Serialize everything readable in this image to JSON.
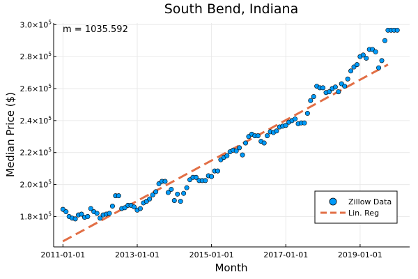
{
  "chart_data": {
    "type": "scatter",
    "title": "South Bend, Indiana",
    "xlabel": "Month",
    "ylabel": "Median Price ($)",
    "annotation": "m = 1035.592",
    "x_ticks": [
      "2011-01-01",
      "2013-01-01",
      "2015-01-01",
      "2017-01-01",
      "2019-01-01"
    ],
    "y_ticks": [
      {
        "value": 180000,
        "mantissa": "1.8×10",
        "exp": "5"
      },
      {
        "value": 200000,
        "mantissa": "2.0×10",
        "exp": "5"
      },
      {
        "value": 220000,
        "mantissa": "2.2×10",
        "exp": "5"
      },
      {
        "value": 240000,
        "mantissa": "2.4×10",
        "exp": "5"
      },
      {
        "value": 260000,
        "mantissa": "2.6×10",
        "exp": "5"
      },
      {
        "value": 280000,
        "mantissa": "2.8×10",
        "exp": "5"
      },
      {
        "value": 300000,
        "mantissa": "3.0×10",
        "exp": "5"
      }
    ],
    "xlim": [
      "2010-10-01",
      "2020-05-01"
    ],
    "ylim": [
      161000,
      301000
    ],
    "grid": true,
    "legend_position": "bottom-right",
    "series": [
      {
        "name": "Zillow Data",
        "type": "scatter",
        "color": "#009af9",
        "x": [
          "2011-01",
          "2011-02",
          "2011-03",
          "2011-04",
          "2011-05",
          "2011-06",
          "2011-07",
          "2011-08",
          "2011-09",
          "2011-10",
          "2011-11",
          "2011-12",
          "2012-01",
          "2012-02",
          "2012-03",
          "2012-04",
          "2012-05",
          "2012-06",
          "2012-07",
          "2012-08",
          "2012-09",
          "2012-10",
          "2012-11",
          "2012-12",
          "2013-01",
          "2013-02",
          "2013-03",
          "2013-04",
          "2013-05",
          "2013-06",
          "2013-07",
          "2013-08",
          "2013-09",
          "2013-10",
          "2013-11",
          "2013-12",
          "2014-01",
          "2014-02",
          "2014-03",
          "2014-04",
          "2014-05",
          "2014-06",
          "2014-07",
          "2014-08",
          "2014-09",
          "2014-10",
          "2014-11",
          "2014-12",
          "2015-01",
          "2015-02",
          "2015-03",
          "2015-04",
          "2015-05",
          "2015-06",
          "2015-07",
          "2015-08",
          "2015-09",
          "2015-10",
          "2015-11",
          "2015-12",
          "2016-01",
          "2016-02",
          "2016-03",
          "2016-04",
          "2016-05",
          "2016-06",
          "2016-07",
          "2016-08",
          "2016-09",
          "2016-10",
          "2016-11",
          "2016-12",
          "2017-01",
          "2017-02",
          "2017-03",
          "2017-04",
          "2017-05",
          "2017-06",
          "2017-07",
          "2017-08",
          "2017-09",
          "2017-10",
          "2017-11",
          "2017-12",
          "2018-01",
          "2018-02",
          "2018-03",
          "2018-04",
          "2018-05",
          "2018-06",
          "2018-07",
          "2018-08",
          "2018-09",
          "2018-10",
          "2018-11",
          "2018-12",
          "2019-01",
          "2019-02",
          "2019-03",
          "2019-04",
          "2019-05",
          "2019-06",
          "2019-07",
          "2019-08",
          "2019-09",
          "2019-10",
          "2019-11",
          "2019-12",
          "2020-01"
        ],
        "y": [
          184500,
          183000,
          180000,
          179000,
          178500,
          181000,
          181500,
          179500,
          180000,
          185000,
          183000,
          182000,
          179000,
          181000,
          181500,
          182000,
          186500,
          193000,
          193000,
          185000,
          185500,
          187000,
          187000,
          186000,
          184000,
          185000,
          188500,
          189500,
          191000,
          193500,
          195500,
          200500,
          202000,
          202000,
          195000,
          197000,
          190000,
          194000,
          189500,
          194500,
          198000,
          203000,
          204500,
          204500,
          202500,
          202500,
          202500,
          205500,
          205000,
          208500,
          208500,
          215500,
          217000,
          218000,
          220500,
          221500,
          221000,
          223000,
          218500,
          226000,
          230000,
          231500,
          230500,
          230500,
          227000,
          226000,
          230500,
          233000,
          232500,
          233500,
          236000,
          236500,
          237000,
          239000,
          240000,
          241000,
          238000,
          238500,
          238500,
          244500,
          252500,
          255000,
          261500,
          260500,
          260500,
          257500,
          258000,
          260000,
          261000,
          258000,
          263000,
          261500,
          266000,
          271000,
          273500,
          275000,
          280000,
          281000,
          279000,
          284500,
          284500,
          283000,
          273000,
          277500,
          290000,
          296500,
          296500,
          296500,
          296500
        ]
      },
      {
        "name": "Lin. Reg",
        "type": "line",
        "style": "dashed",
        "color": "#e26f46",
        "x": [
          "2011-01",
          "2019-10"
        ],
        "y": [
          164500,
          275000
        ]
      }
    ]
  }
}
